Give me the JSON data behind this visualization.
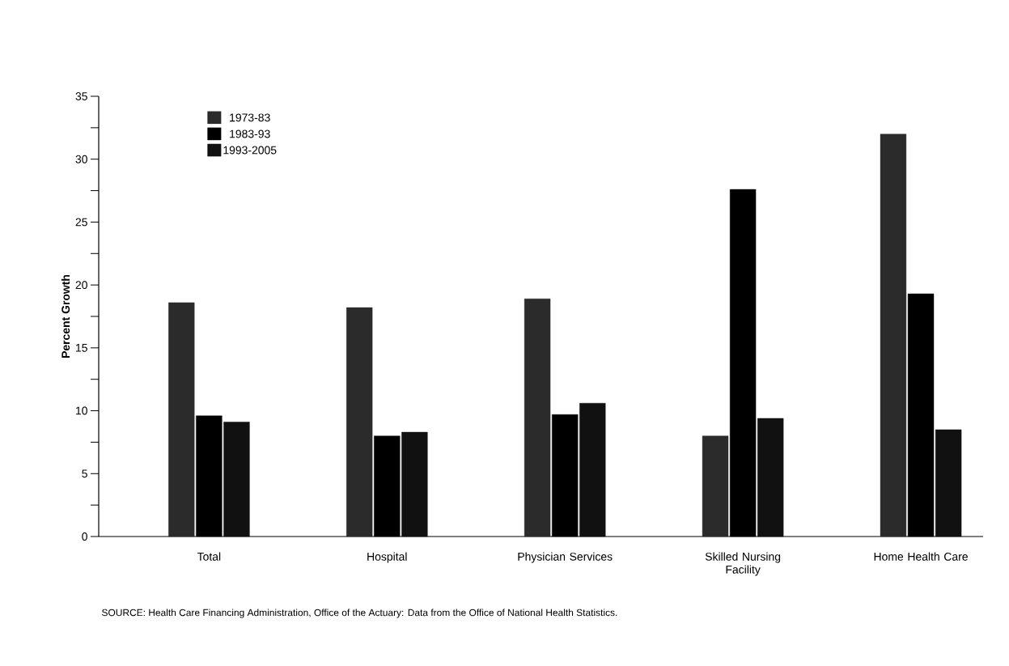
{
  "chart_data": {
    "type": "bar",
    "ylabel": "Percent Growth",
    "categories": [
      "Total",
      "Hospital",
      "Physician Services",
      "Skilled Nursing Facility",
      "Home Health Care"
    ],
    "series": [
      {
        "name": "1973-83",
        "color": "#2b2b2b",
        "values": [
          18.6,
          18.2,
          18.9,
          8.0,
          32.0
        ]
      },
      {
        "name": "1983-93",
        "color": "#000000",
        "values": [
          9.6,
          8.0,
          9.7,
          27.6,
          19.3
        ]
      },
      {
        "name": "1993-2005",
        "color": "#111111",
        "values": [
          9.1,
          8.3,
          10.6,
          9.4,
          8.5
        ]
      }
    ],
    "ylim": [
      0,
      35
    ],
    "yticks": [
      0,
      {
        "value": 2.5,
        "label": null
      },
      5,
      {
        "value": 7.5,
        "label": null
      },
      10,
      {
        "value": 12.5,
        "label": null
      },
      15,
      {
        "value": 17.5,
        "label": null
      },
      20,
      {
        "value": 22.5,
        "label": null
      },
      25,
      {
        "value": 27.5,
        "label": null
      },
      30,
      {
        "value": 32.5,
        "label": null
      },
      35
    ],
    "legend": "top left",
    "annotations": [
      "SOURCE: Health Care Financing Administration, Office of the Actuary: Data from the Office of National Health Statistics."
    ]
  }
}
